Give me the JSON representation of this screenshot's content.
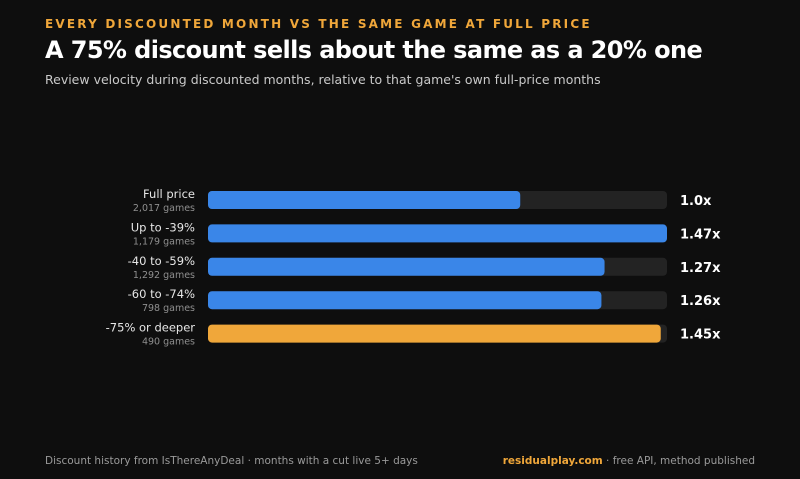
{
  "header": {
    "eyebrow": "EVERY DISCOUNTED MONTH VS THE SAME GAME AT FULL PRICE",
    "title": "A 75% discount sells about the same as a 20% one",
    "subtitle": "Review velocity during discounted months, relative to that game's own full-price months"
  },
  "footer": {
    "source": "Discount history from IsThereAnyDeal · months with a cut live 5+ days",
    "brand": "residualplay.com",
    "tagline": " · free API, method published"
  },
  "colors": {
    "background": "#0e0e0e",
    "bar_default": "#3a86e8",
    "bar_highlight": "#f0a73a",
    "track": "#232323"
  },
  "chart_data": {
    "type": "bar",
    "orientation": "horizontal",
    "categories": [
      "Full price",
      "Up to -39%",
      "-40 to -59%",
      "-60 to -74%",
      "-75% or deeper"
    ],
    "sublabels": [
      "2,017 games",
      "1,179 games",
      "1,292 games",
      "798 games",
      "490 games"
    ],
    "values": [
      1.0,
      1.47,
      1.27,
      1.26,
      1.45
    ],
    "value_labels": [
      "1.0x",
      "1.47x",
      "1.27x",
      "1.26x",
      "1.45x"
    ],
    "highlight_index": 4,
    "xlim": [
      0,
      1.47
    ],
    "grid": false,
    "title": "",
    "xlabel": "",
    "ylabel": ""
  }
}
